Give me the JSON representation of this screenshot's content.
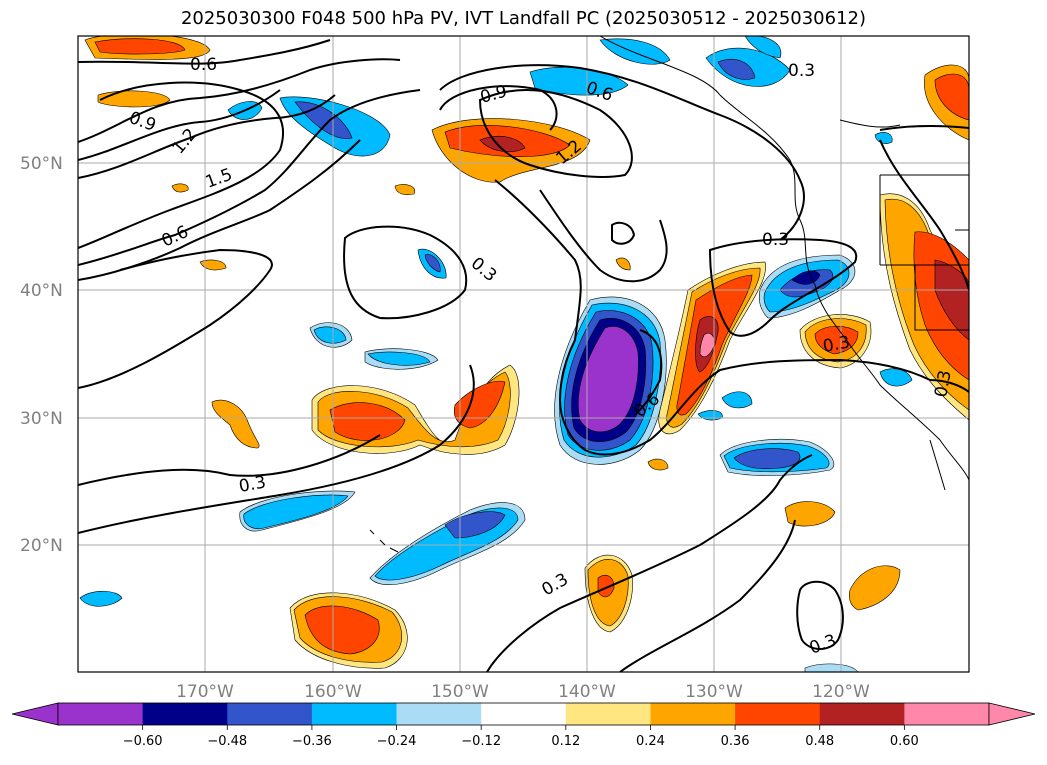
{
  "title": "2025030300 F048 500 hPa PV, IVT Landfall PC (2025030512 - 2025030612)",
  "axes": {
    "lat_labels": [
      "50°N",
      "40°N",
      "30°N",
      "20°N"
    ],
    "lon_labels": [
      "170°W",
      "160°W",
      "150°W",
      "140°W",
      "130°W",
      "120°W"
    ]
  },
  "contour_labels": [
    "0.6",
    "0.9",
    "1.2",
    "1.5",
    "0.6",
    "0.9",
    "0.6",
    "1.2",
    "0.3",
    "0.3",
    "0.3",
    "0.6",
    "0.3",
    "0.3",
    "0.3",
    "0.3",
    "0.3"
  ],
  "colorbar": {
    "ticks": [
      "−0.60",
      "−0.48",
      "−0.36",
      "−0.24",
      "−0.12",
      "0.12",
      "0.24",
      "0.36",
      "0.48",
      "0.60"
    ],
    "colors": [
      "#9933cc",
      "#000088",
      "#3355cc",
      "#00bbff",
      "#aaddf5",
      "#ffffff",
      "#ffe680",
      "#ffa500",
      "#ff4500",
      "#b22222",
      "#ff88aa"
    ]
  }
}
